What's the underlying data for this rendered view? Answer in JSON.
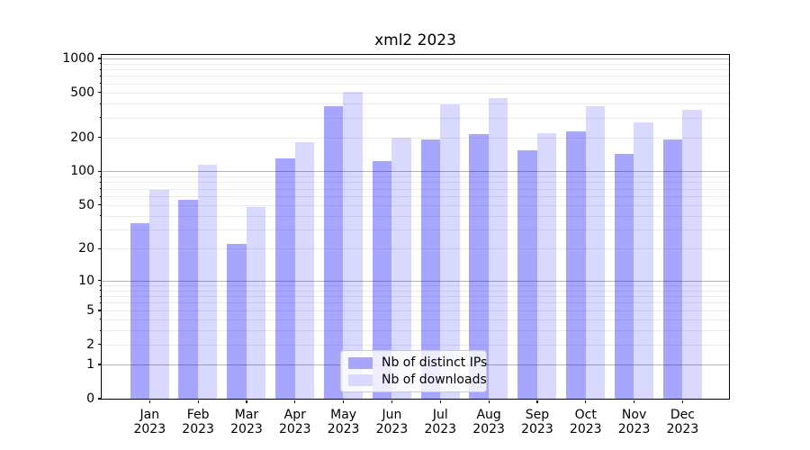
{
  "chart_data": {
    "type": "bar",
    "title": "xml2 2023",
    "categories": [
      "Jan",
      "Feb",
      "Mar",
      "Apr",
      "May",
      "Jun",
      "Jul",
      "Aug",
      "Sep",
      "Oct",
      "Nov",
      "Dec"
    ],
    "x_tick_year": "2023",
    "series": [
      {
        "name": "Nb of distinct IPs",
        "color": "rgba(0,0,255,0.35)",
        "color_hex": "#a6a6ff",
        "values": [
          34,
          56,
          22,
          130,
          380,
          124,
          190,
          215,
          153,
          225,
          142,
          190
        ]
      },
      {
        "name": "Nb of downloads",
        "color": "rgba(0,0,255,0.15)",
        "color_hex": "#d9d9ff",
        "values": [
          68,
          115,
          48,
          182,
          510,
          200,
          390,
          448,
          218,
          380,
          270,
          353
        ]
      }
    ],
    "y_axis": {
      "scale": "log10(1+x)",
      "ticks": [
        0,
        1,
        2,
        5,
        10,
        20,
        50,
        100,
        200,
        500,
        1000
      ],
      "range": [
        0,
        1000
      ]
    },
    "grid": {
      "which": "both",
      "major_at": [
        1,
        10,
        100,
        1000
      ],
      "major_color": "#b3b3b3",
      "minor_color": "#ebebeb"
    },
    "legend_position": "lower center"
  }
}
